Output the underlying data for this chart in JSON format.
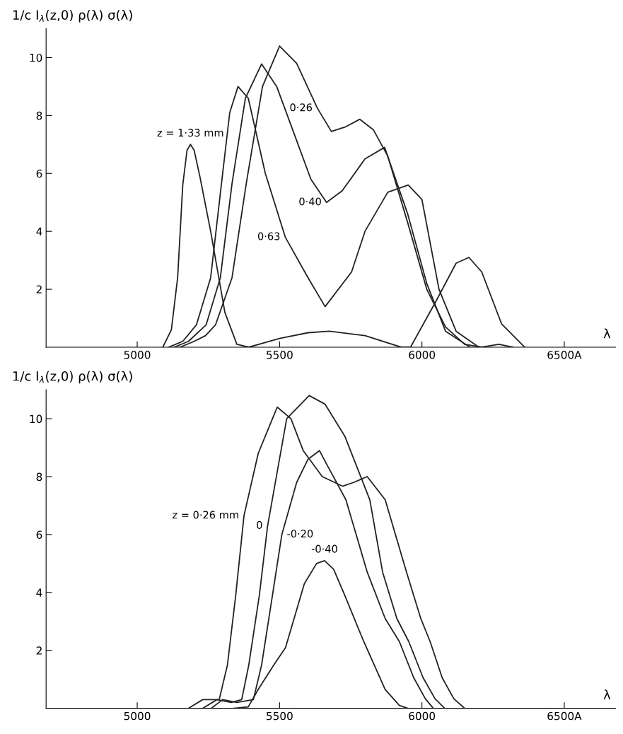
{
  "chart_data": [
    {
      "type": "line",
      "ylabel": "1/c I$_{λ}$(z,0) ρ(λ) σ(λ)",
      "xlabel": "λ",
      "xlim": [
        4680,
        6680
      ],
      "xticks": [
        5000,
        5500,
        6000,
        {
          "value": 6500,
          "label": "6500A"
        }
      ],
      "ylim": [
        0,
        11
      ],
      "yticks": [
        2,
        4,
        6,
        8,
        10
      ],
      "line_style": "solid",
      "series": [
        {
          "color": "#222222",
          "x": [
            5090,
            5120,
            5142,
            5160,
            5175,
            5187,
            5200,
            5220,
            5258,
            5308,
            5350,
            5392,
            5500,
            5600,
            5675,
            5800,
            5927,
            5960,
            6050,
            6120,
            6165,
            6210,
            6280,
            6361
          ],
          "values": [
            0,
            0.6,
            2.4,
            5.6,
            6.8,
            7.0,
            6.8,
            5.9,
            4.0,
            1.2,
            0.1,
            0,
            0.3,
            0.5,
            0.55,
            0.4,
            0,
            0,
            1.6,
            2.9,
            3.1,
            2.6,
            0.8,
            0
          ]
        },
        {
          "color": "#222222",
          "x": [
            5110,
            5160,
            5208,
            5258,
            5296,
            5325,
            5354,
            5390,
            5450,
            5520,
            5600,
            5660,
            5753,
            5800,
            5880,
            5952,
            6000,
            6060,
            6120,
            6200
          ],
          "values": [
            0,
            0.2,
            0.77,
            2.4,
            5.65,
            8.1,
            9.0,
            8.6,
            6.0,
            3.8,
            2.4,
            1.4,
            2.6,
            4.0,
            5.35,
            5.6,
            5.1,
            2.0,
            0.55,
            0
          ]
        },
        {
          "color": "#222222",
          "x": [
            5130,
            5180,
            5242,
            5292,
            5333,
            5380,
            5437,
            5490,
            5550,
            5610,
            5665,
            5720,
            5800,
            5869,
            5950,
            6017,
            6083,
            6169
          ],
          "values": [
            0,
            0.2,
            0.77,
            2.4,
            5.65,
            8.6,
            9.78,
            9.0,
            7.4,
            5.8,
            5.0,
            5.4,
            6.5,
            6.9,
            4.6,
            2.2,
            0.55,
            0
          ]
        },
        {
          "color": "#222222",
          "x": [
            5150,
            5200,
            5240,
            5275,
            5333,
            5383,
            5440,
            5500,
            5560,
            5633,
            5682,
            5730,
            5782,
            5830,
            5880,
            5950,
            6017,
            6083,
            6150,
            6210,
            6270,
            6320
          ],
          "values": [
            0,
            0.2,
            0.4,
            0.77,
            2.4,
            5.65,
            9.0,
            10.4,
            9.8,
            8.25,
            7.45,
            7.6,
            7.87,
            7.5,
            6.6,
            4.3,
            2.0,
            0.7,
            0.1,
            0,
            0.1,
            0
          ]
        }
      ],
      "annotations": [
        {
          "text": "z = 1·33 mm",
          "x": 5187,
          "y": 7.0
        },
        {
          "text": "0·26",
          "x": 5633,
          "y": 8.25
        },
        {
          "text": "0·40",
          "x": 5665,
          "y": 5.0
        },
        {
          "text": "0·63",
          "x": 5520,
          "y": 3.8
        }
      ]
    },
    {
      "type": "line",
      "ylabel": "1/c I$_{λ}$(z,0) ρ(λ) σ(λ)",
      "xlabel": "λ",
      "xlim": [
        4680,
        6680
      ],
      "xticks": [
        5000,
        5500,
        6000,
        {
          "value": 6500,
          "label": "6500A"
        }
      ],
      "ylim": [
        0,
        11
      ],
      "yticks": [
        2,
        4,
        6,
        8,
        10
      ],
      "line_style": "solid",
      "series": [
        {
          "color": "#222222",
          "x": [
            5180,
            5230,
            5288,
            5317,
            5346,
            5375,
            5425,
            5475,
            5492,
            5540,
            5583,
            5650,
            5721,
            5760,
            5808,
            5871,
            5946,
            5996,
            6029,
            6071,
            6112,
            6150
          ],
          "values": [
            0,
            0.3,
            0.3,
            1.5,
            3.9,
            6.65,
            8.8,
            10.0,
            10.4,
            10.0,
            8.9,
            8.0,
            7.67,
            7.8,
            8.0,
            7.2,
            4.7,
            3.1,
            2.3,
            1.06,
            0.33,
            0
          ]
        },
        {
          "color": "#222222",
          "x": [
            5230,
            5280,
            5330,
            5367,
            5392,
            5429,
            5458,
            5525,
            5604,
            5660,
            5729,
            5817,
            5862,
            5912,
            5954,
            6004,
            6046,
            6080
          ],
          "values": [
            0,
            0.3,
            0.2,
            0.3,
            1.5,
            3.9,
            6.3,
            10.0,
            10.8,
            10.5,
            9.4,
            7.2,
            4.7,
            3.1,
            2.3,
            1.06,
            0.33,
            0
          ]
        },
        {
          "color": "#222222",
          "x": [
            5260,
            5300,
            5350,
            5408,
            5437,
            5475,
            5508,
            5560,
            5600,
            5640,
            5667,
            5733,
            5808,
            5871,
            5921,
            5971,
            6012,
            6040
          ],
          "values": [
            0,
            0.3,
            0.2,
            0.3,
            1.5,
            3.9,
            6.0,
            7.8,
            8.6,
            8.9,
            8.4,
            7.2,
            4.7,
            3.1,
            2.3,
            1.06,
            0.33,
            0
          ]
        },
        {
          "color": "#222222",
          "x": [
            5340,
            5390,
            5425,
            5480,
            5521,
            5587,
            5630,
            5658,
            5690,
            5729,
            5796,
            5871,
            5921,
            5950
          ],
          "values": [
            0,
            0.05,
            0.65,
            1.5,
            2.1,
            4.3,
            5.0,
            5.1,
            4.8,
            3.9,
            2.3,
            0.65,
            0.1,
            0
          ]
        }
      ],
      "annotations": [
        {
          "text": "z = 0·26 mm",
          "x": 5375,
          "y": 6.65
        },
        {
          "text": "0",
          "x": 5458,
          "y": 6.3
        },
        {
          "text": "-0·20",
          "x": 5508,
          "y": 6.0
        },
        {
          "text": "-0·40",
          "x": 5658,
          "y": 5.1
        }
      ]
    }
  ]
}
